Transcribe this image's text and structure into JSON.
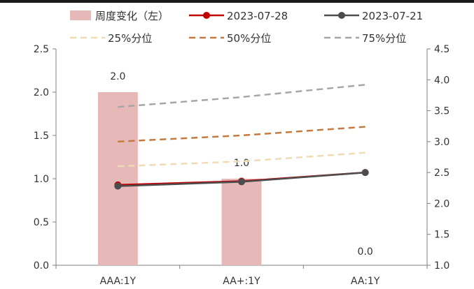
{
  "chart_data": {
    "type": "bar",
    "categories": [
      "AAA:1Y",
      "AA+:1Y",
      "AA:1Y"
    ],
    "series": [
      {
        "name": "周度变化（左）",
        "kind": "bar",
        "axis": "left",
        "values": [
          2.0,
          1.0,
          0.0
        ],
        "color": "#e6b8b8"
      },
      {
        "name": "2023-07-28",
        "kind": "line",
        "axis": "right",
        "values": [
          2.3,
          2.36,
          2.5
        ],
        "color": "#c00000",
        "marker": "circle"
      },
      {
        "name": "2023-07-21",
        "kind": "line",
        "axis": "right",
        "values": [
          2.28,
          2.35,
          2.5
        ],
        "color": "#4d4d4d",
        "marker": "circle"
      },
      {
        "name": "25%分位",
        "kind": "line",
        "axis": "right",
        "dash": true,
        "values": [
          2.6,
          2.68,
          2.82
        ],
        "color": "#f0dcb4"
      },
      {
        "name": "50%分位",
        "kind": "line",
        "axis": "right",
        "dash": true,
        "values": [
          3.0,
          3.1,
          3.24
        ],
        "color": "#c47a3f"
      },
      {
        "name": "75%分位",
        "kind": "line",
        "axis": "right",
        "dash": true,
        "values": [
          3.56,
          3.72,
          3.92
        ],
        "color": "#a6a6a6"
      }
    ],
    "bar_labels": [
      "2.0",
      "1.0",
      "0.0"
    ],
    "left_axis": {
      "ylim": [
        0,
        2.5
      ],
      "ticks": [
        "0.0",
        "0.5",
        "1.0",
        "1.5",
        "2.0",
        "2.5"
      ]
    },
    "right_axis": {
      "ylim": [
        1.0,
        4.5
      ],
      "ticks": [
        "1.0",
        "1.5",
        "2.0",
        "2.5",
        "3.0",
        "3.5",
        "4.0",
        "4.5"
      ]
    },
    "legend_position": "top",
    "grid": false
  }
}
